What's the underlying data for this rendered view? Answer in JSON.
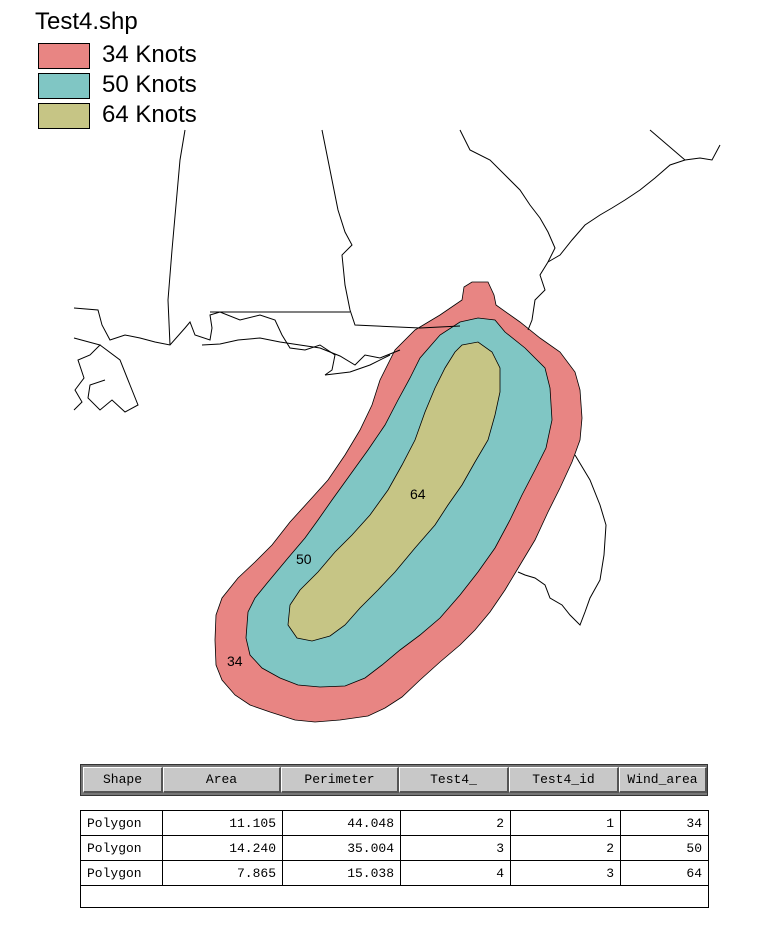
{
  "legend": {
    "title": "Test4.shp",
    "items": [
      {
        "label": "34 Knots",
        "color": "#e88583"
      },
      {
        "label": "50 Knots",
        "color": "#80c6c4"
      },
      {
        "label": "64 Knots",
        "color": "#c6c585"
      }
    ]
  },
  "map": {
    "zone_labels": [
      "34",
      "50",
      "64"
    ],
    "coastline_color": "#000000"
  },
  "table": {
    "headers": [
      "Shape",
      "Area",
      "Perimeter",
      "Test4_",
      "Test4_id",
      "Wind_area"
    ],
    "rows": [
      [
        "Polygon",
        "11.105",
        "44.048",
        "2",
        "1",
        "34"
      ],
      [
        "Polygon",
        "14.240",
        "35.004",
        "3",
        "2",
        "50"
      ],
      [
        "Polygon",
        "7.865",
        "15.038",
        "4",
        "3",
        "64"
      ]
    ]
  }
}
